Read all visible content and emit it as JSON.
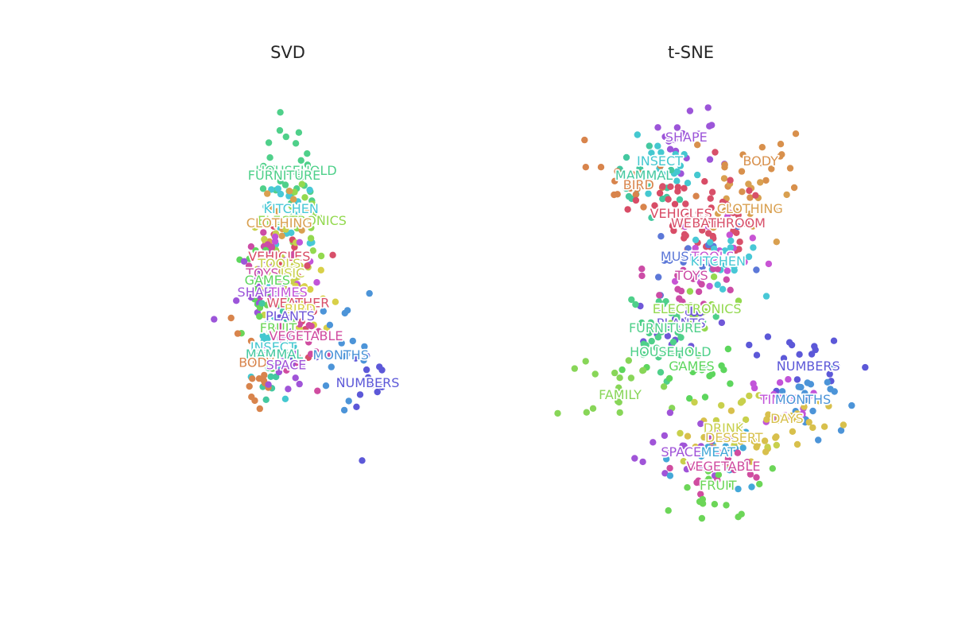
{
  "chart_data": [
    {
      "type": "scatter",
      "title": "SVD",
      "xlim": [
        -1.2,
        2.0
      ],
      "ylim": [
        -1.0,
        1.0
      ],
      "grid": false,
      "axes_visible": false,
      "labels": [
        {
          "text": "HOUSEHOLD",
          "x": 0.5,
          "y": 0.62,
          "color": "#4fd08a"
        },
        {
          "text": "FURNITURE",
          "x": 0.38,
          "y": 0.6,
          "color": "#4fd08a"
        },
        {
          "text": "KITCHEN",
          "x": 0.45,
          "y": 0.46,
          "color": "#48c8d6"
        },
        {
          "text": "ELECTRONICS",
          "x": 0.56,
          "y": 0.41,
          "color": "#93d94f"
        },
        {
          "text": "CLOTHING",
          "x": 0.33,
          "y": 0.4,
          "color": "#d9a050"
        },
        {
          "text": "VEHICLES",
          "x": 0.33,
          "y": 0.26,
          "color": "#d84c66"
        },
        {
          "text": "TOOLS",
          "x": 0.33,
          "y": 0.23,
          "color": "#c8d04c"
        },
        {
          "text": "MUSIC",
          "x": 0.38,
          "y": 0.19,
          "color": "#c8d04c"
        },
        {
          "text": "TOYS",
          "x": 0.16,
          "y": 0.19,
          "color": "#cc4ca6"
        },
        {
          "text": "GAMES",
          "x": 0.21,
          "y": 0.16,
          "color": "#5dd65d"
        },
        {
          "text": "SHAPE",
          "x": 0.12,
          "y": 0.11,
          "color": "#9c55d9"
        },
        {
          "text": "TIMES",
          "x": 0.42,
          "y": 0.11,
          "color": "#c254d9"
        },
        {
          "text": "WEATHER",
          "x": 0.52,
          "y": 0.065,
          "color": "#d8506a"
        },
        {
          "text": "BIRD",
          "x": 0.54,
          "y": 0.04,
          "color": "#d8d048"
        },
        {
          "text": "PLANTS",
          "x": 0.44,
          "y": 0.01,
          "color": "#7058d8"
        },
        {
          "text": "FRUIT",
          "x": 0.32,
          "y": -0.04,
          "color": "#6cd658"
        },
        {
          "text": "VEGETABLE",
          "x": 0.6,
          "y": -0.073,
          "color": "#d04ca0"
        },
        {
          "text": "INSECT",
          "x": 0.27,
          "y": -0.12,
          "color": "#44c8d0"
        },
        {
          "text": "MAMMAL",
          "x": 0.28,
          "y": -0.15,
          "color": "#44c8a0"
        },
        {
          "text": "MONTHS",
          "x": 0.95,
          "y": -0.153,
          "color": "#4c94d8"
        },
        {
          "text": "BODY",
          "x": 0.1,
          "y": -0.185,
          "color": "#d8844c"
        },
        {
          "text": "SPACE",
          "x": 0.4,
          "y": -0.195,
          "color": "#a054d8"
        },
        {
          "text": "NUMBERS",
          "x": 1.22,
          "y": -0.27,
          "color": "#5c58d8"
        }
      ]
    },
    {
      "type": "scatter",
      "title": "t-SNE",
      "xlim": [
        -60,
        60
      ],
      "ylim": [
        -50,
        50
      ],
      "grid": false,
      "axes_visible": false,
      "labels": [
        {
          "text": "SHAPE",
          "x": -2,
          "y": 38,
          "color": "#9c55d9"
        },
        {
          "text": "INSECT",
          "x": -12,
          "y": 33,
          "color": "#44c8d0"
        },
        {
          "text": "BODY",
          "x": 26,
          "y": 33,
          "color": "#d8904c"
        },
        {
          "text": "MAMMAL",
          "x": -18,
          "y": 30,
          "color": "#44c8a0"
        },
        {
          "text": "BIRD",
          "x": -20,
          "y": 28,
          "color": "#d8844c"
        },
        {
          "text": "CLOTHING",
          "x": 22,
          "y": 23,
          "color": "#d9a050"
        },
        {
          "text": "VEHICLES",
          "x": -4,
          "y": 22,
          "color": "#d84c66"
        },
        {
          "text": "WEATHER",
          "x": 4,
          "y": 20,
          "color": "#d8506a"
        },
        {
          "text": "BATHROOM",
          "x": 14,
          "y": 20,
          "color": "#d8506a"
        },
        {
          "text": "MUSIC",
          "x": -4,
          "y": 13,
          "color": "#5c78d8"
        },
        {
          "text": "TOOLS",
          "x": 8,
          "y": 13,
          "color": "#c854d4"
        },
        {
          "text": "KITCHEN",
          "x": 10,
          "y": 12,
          "color": "#48c8d6"
        },
        {
          "text": "TOYS",
          "x": 0,
          "y": 9,
          "color": "#cc4ca6"
        },
        {
          "text": "ELECTRONICS",
          "x": 2,
          "y": 2,
          "color": "#93d94f"
        },
        {
          "text": "PLANTS",
          "x": -4,
          "y": -1,
          "color": "#7058d8"
        },
        {
          "text": "FURNITURE",
          "x": -10,
          "y": -2,
          "color": "#4fd08a"
        },
        {
          "text": "HOUSEHOLD",
          "x": -8,
          "y": -7,
          "color": "#4fd08a"
        },
        {
          "text": "GAMES",
          "x": 0,
          "y": -10,
          "color": "#5dd65d"
        },
        {
          "text": "NUMBERS",
          "x": 44,
          "y": -10,
          "color": "#5c58d8"
        },
        {
          "text": "FAMILY",
          "x": -27,
          "y": -16,
          "color": "#88d658"
        },
        {
          "text": "TIMES",
          "x": 33,
          "y": -17,
          "color": "#c254d9"
        },
        {
          "text": "MONTHS",
          "x": 42,
          "y": -17,
          "color": "#4c94d8"
        },
        {
          "text": "DAYS",
          "x": 36,
          "y": -21,
          "color": "#d8c04c"
        },
        {
          "text": "DRINK",
          "x": 12,
          "y": -23,
          "color": "#c8d04c"
        },
        {
          "text": "DESSERT",
          "x": 16,
          "y": -25,
          "color": "#d8c04c"
        },
        {
          "text": "SPACE",
          "x": -4,
          "y": -28,
          "color": "#a054d8"
        },
        {
          "text": "MEAT",
          "x": 10,
          "y": -28,
          "color": "#44a8d8"
        },
        {
          "text": "VEGETABLE",
          "x": 12,
          "y": -31,
          "color": "#d04ca0"
        },
        {
          "text": "FRUIT",
          "x": 10,
          "y": -35,
          "color": "#6cd658"
        }
      ]
    }
  ]
}
